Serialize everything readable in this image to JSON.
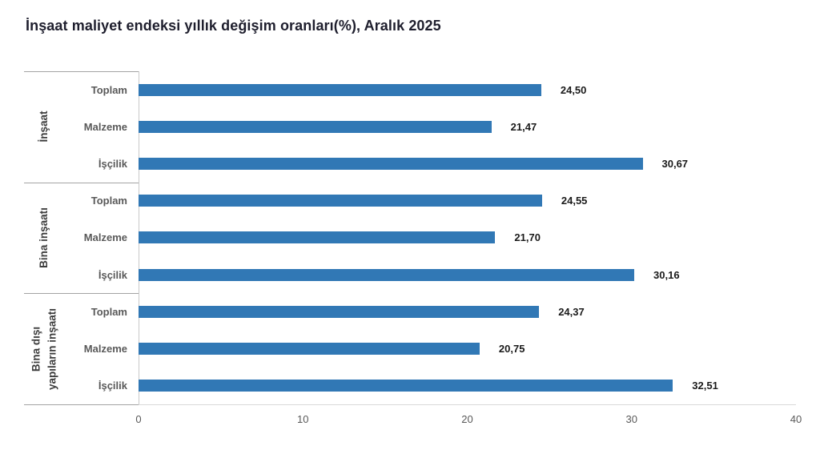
{
  "chart_data": {
    "type": "bar",
    "orientation": "horizontal",
    "title": "İnşaat maliyet endeksi yıllık değişim oranları(%), Aralık 2025",
    "xlabel": "",
    "ylabel": "",
    "xlim": [
      0,
      40
    ],
    "x_ticks": [
      0,
      10,
      20,
      30,
      40
    ],
    "x_tick_labels": [
      "0",
      "10",
      "20",
      "30",
      "40"
    ],
    "grid": false,
    "legend": false,
    "bar_color": "#3178B5",
    "groups": [
      {
        "name": "İnşaat",
        "name_lines": [
          "İnşaat"
        ],
        "categories": [
          "Toplam",
          "Malzeme",
          "İşçilik"
        ],
        "values": [
          24.5,
          21.47,
          30.67
        ],
        "value_labels": [
          "24,50",
          "21,47",
          "30,67"
        ]
      },
      {
        "name": "Bina inşaatı",
        "name_lines": [
          "Bina inşaatı"
        ],
        "categories": [
          "Toplam",
          "Malzeme",
          "İşçilik"
        ],
        "values": [
          24.55,
          21.7,
          30.16
        ],
        "value_labels": [
          "24,55",
          "21,70",
          "30,16"
        ]
      },
      {
        "name": "Bina dışı yapıların inşaatı",
        "name_lines": [
          "Bina dışı",
          "yapıların inşaatı"
        ],
        "categories": [
          "Toplam",
          "Malzeme",
          "İşçilik"
        ],
        "values": [
          24.37,
          20.75,
          32.51
        ],
        "value_labels": [
          "24,37",
          "20,75",
          "32,51"
        ]
      }
    ]
  }
}
